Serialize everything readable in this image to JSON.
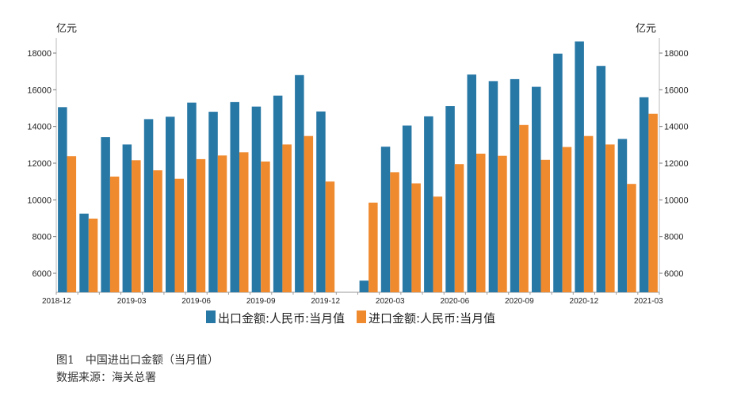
{
  "chart_data": {
    "type": "bar",
    "left_unit": "亿元",
    "right_unit": "亿元",
    "ylim": [
      5000,
      19000
    ],
    "y_ticks": [
      6000,
      8000,
      10000,
      12000,
      14000,
      16000,
      18000
    ],
    "categories": [
      "2018-12",
      "2019-01",
      "2019-02",
      "2019-03",
      "2019-04",
      "2019-05",
      "2019-06",
      "2019-07",
      "2019-08",
      "2019-09",
      "2019-10",
      "2019-11",
      "2019-12",
      "2020-01",
      "2020-02",
      "2020-03",
      "2020-04",
      "2020-05",
      "2020-06",
      "2020-07",
      "2020-08",
      "2020-09",
      "2020-10",
      "2020-11",
      "2020-12",
      "2021-01",
      "2021-02",
      "2021-03"
    ],
    "x_tick_labels": [
      {
        "index": 0,
        "label": "2018-12"
      },
      {
        "index": 3,
        "label": "2019-03"
      },
      {
        "index": 6,
        "label": "2019-06"
      },
      {
        "index": 9,
        "label": "2019-09"
      },
      {
        "index": 12,
        "label": "2019-12"
      },
      {
        "index": 15,
        "label": "2020-03"
      },
      {
        "index": 18,
        "label": "2020-06"
      },
      {
        "index": 21,
        "label": "2020-09"
      },
      {
        "index": 24,
        "label": "2020-12"
      },
      {
        "index": 27,
        "label": "2021-03"
      }
    ],
    "series": [
      {
        "name": "出口金额:人民币:当月值",
        "color": "#2878a6",
        "values": [
          15050,
          9250,
          13420,
          13020,
          14400,
          14530,
          15300,
          14800,
          15330,
          15080,
          15680,
          16800,
          14820,
          null,
          5600,
          12900,
          14050,
          14550,
          15110,
          16830,
          16470,
          16580,
          16160,
          17970,
          18630,
          17300,
          13320,
          15590
        ]
      },
      {
        "name": "进口金额:人民币:当月值",
        "color": "#f08a2f",
        "values": [
          12380,
          8980,
          11270,
          12160,
          11610,
          11150,
          12220,
          12420,
          12590,
          12090,
          13020,
          13480,
          11000,
          null,
          9850,
          11510,
          10900,
          10180,
          11950,
          12520,
          12400,
          14080,
          12180,
          12880,
          13480,
          13020,
          10870,
          14690
        ]
      }
    ]
  },
  "caption": {
    "figure": "图1　中国进出口金额（当月值）",
    "source": "数据来源：海关总署"
  }
}
